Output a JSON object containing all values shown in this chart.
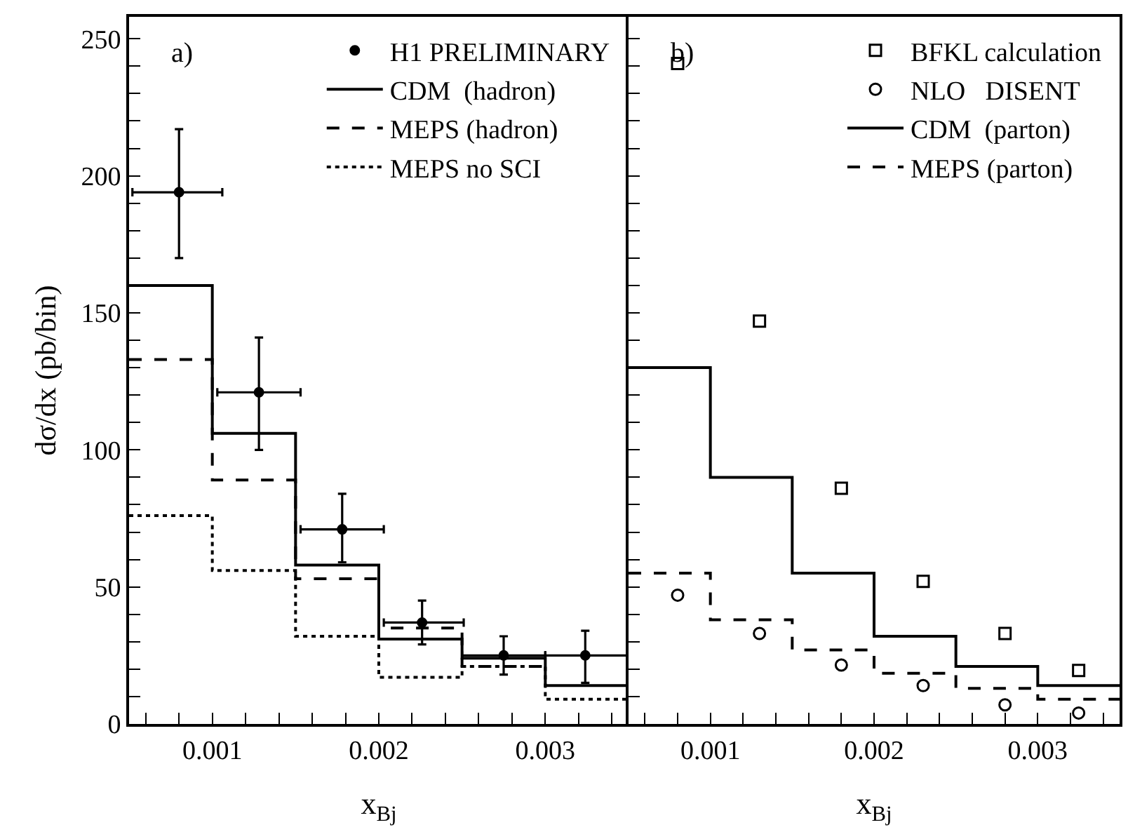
{
  "chart_data": [
    {
      "type": "step",
      "annotations": [
        "a)"
      ],
      "ylabel": "dσ/dx (pb/bin)",
      "xlabel": "x$_{Bj}$",
      "series": [
        {
          "name": "H1 PRELIMINARY",
          "type": "scatter",
          "marker": "circle",
          "color": "#000000",
          "x": [
            0.0008,
            0.00128,
            0.00178,
            0.00226,
            0.00275,
            0.00324
          ],
          "values": [
            194,
            121,
            71,
            37,
            25,
            25
          ],
          "errors": [
            [
              170,
              217
            ],
            [
              100,
              141
            ],
            [
              59,
              84
            ],
            [
              29,
              45
            ],
            [
              18,
              32
            ],
            [
              15,
              34
            ]
          ],
          "xerrors": [
            [
              0.00052,
              0.00106
            ],
            [
              0.00103,
              0.00153
            ],
            [
              0.00153,
              0.00203
            ],
            [
              0.00203,
              0.00251
            ],
            [
              0.0025,
              0.003
            ],
            [
              0.003,
              0.0035
            ]
          ]
        },
        {
          "name": "CDM  (hadron)",
          "line_style": "solid",
          "color": "#000000",
          "x": [
            0.0005,
            0.001,
            0.0015,
            0.002,
            0.0025,
            0.003,
            0.0035
          ],
          "values": [
            160,
            106,
            58,
            31,
            24,
            14,
            14
          ]
        },
        {
          "name": "MEPS (hadron)",
          "line_style": "dashed",
          "color": "#000000",
          "x": [
            0.0005,
            0.001,
            0.0015,
            0.002,
            0.0025,
            0.003
          ],
          "values": [
            133,
            89,
            53,
            35,
            21,
            21
          ]
        },
        {
          "name": "MEPS no SCI",
          "line_style": "dotted",
          "color": "#000000",
          "x": [
            0.0005,
            0.001,
            0.0015,
            0.002,
            0.0025,
            0.003,
            0.0035
          ],
          "values": [
            76,
            56,
            32,
            17,
            21,
            9,
            9
          ]
        }
      ],
      "xlim": [
        0.0005,
        0.0035
      ],
      "ylim": [
        0,
        258
      ],
      "xticks": [
        {
          "value": 0.0006,
          "label": null
        },
        {
          "value": 0.0008,
          "label": null
        },
        0.001,
        {
          "value": 0.0012,
          "label": null
        },
        {
          "value": 0.0014,
          "label": null
        },
        {
          "value": 0.0016,
          "label": null
        },
        {
          "value": 0.0018,
          "label": null
        },
        0.002,
        {
          "value": 0.0022,
          "label": null
        },
        {
          "value": 0.0024,
          "label": null
        },
        {
          "value": 0.0026,
          "label": null
        },
        {
          "value": 0.0028,
          "label": null
        },
        0.003,
        {
          "value": 0.0032,
          "label": null
        },
        {
          "value": 0.0034,
          "label": null
        }
      ],
      "yticks": [
        0,
        {
          "value": 10,
          "label": null
        },
        {
          "value": 20,
          "label": null
        },
        {
          "value": 30,
          "label": null
        },
        {
          "value": 40,
          "label": null
        },
        50,
        {
          "value": 60,
          "label": null
        },
        {
          "value": 70,
          "label": null
        },
        {
          "value": 80,
          "label": null
        },
        {
          "value": 90,
          "label": null
        },
        100,
        {
          "value": 110,
          "label": null
        },
        {
          "value": 120,
          "label": null
        },
        {
          "value": 130,
          "label": null
        },
        {
          "value": 140,
          "label": null
        },
        150,
        {
          "value": 160,
          "label": null
        },
        {
          "value": 170,
          "label": null
        },
        {
          "value": 180,
          "label": null
        },
        {
          "value": 190,
          "label": null
        },
        200,
        {
          "value": 210,
          "label": null
        },
        {
          "value": 220,
          "label": null
        },
        {
          "value": 230,
          "label": null
        },
        {
          "value": 240,
          "label": null
        },
        250
      ],
      "grid": false,
      "legend": "top right"
    },
    {
      "type": "step",
      "annotations": [
        "b)"
      ],
      "xlabel": "x$_{Bj}$",
      "series": [
        {
          "name": "BFKL calculation",
          "type": "scatter",
          "marker": "square",
          "color": "#000000",
          "x": [
            0.0008,
            0.0013,
            0.0018,
            0.0023,
            0.0028,
            0.00325
          ],
          "values": [
            241,
            147,
            86,
            52,
            33,
            19.5
          ]
        },
        {
          "name": "NLO   DISENT",
          "type": "scatter",
          "marker": "circle",
          "color": "#000000",
          "x": [
            0.0008,
            0.0013,
            0.0018,
            0.0023,
            0.0028,
            0.00325
          ],
          "values": [
            47,
            33,
            21.5,
            14,
            7,
            4
          ]
        },
        {
          "name": "CDM  (parton)",
          "line_style": "solid",
          "color": "#000000",
          "x": [
            0.0005,
            0.001,
            0.0015,
            0.002,
            0.0025,
            0.003,
            0.0035
          ],
          "values": [
            130,
            90,
            55,
            32,
            21,
            14,
            14
          ]
        },
        {
          "name": "MEPS (parton)",
          "line_style": "dashed",
          "color": "#000000",
          "x": [
            0.0005,
            0.001,
            0.0015,
            0.002,
            0.0025,
            0.003,
            0.0035
          ],
          "values": [
            55,
            38,
            27,
            18.5,
            13,
            9,
            9
          ]
        }
      ],
      "xlim": [
        0.0005,
        0.0035
      ],
      "ylim": [
        0,
        258
      ],
      "xticks": [
        {
          "value": 0.0006,
          "label": null
        },
        {
          "value": 0.0008,
          "label": null
        },
        0.001,
        {
          "value": 0.0012,
          "label": null
        },
        {
          "value": 0.0014,
          "label": null
        },
        {
          "value": 0.0016,
          "label": null
        },
        {
          "value": 0.0018,
          "label": null
        },
        0.002,
        {
          "value": 0.0022,
          "label": null
        },
        {
          "value": 0.0024,
          "label": null
        },
        {
          "value": 0.0026,
          "label": null
        },
        {
          "value": 0.0028,
          "label": null
        },
        0.003,
        {
          "value": 0.0032,
          "label": null
        },
        {
          "value": 0.0034,
          "label": null
        }
      ],
      "yticks": [
        0,
        {
          "value": 10,
          "label": null
        },
        {
          "value": 20,
          "label": null
        },
        {
          "value": 30,
          "label": null
        },
        {
          "value": 40,
          "label": null
        },
        50,
        {
          "value": 60,
          "label": null
        },
        {
          "value": 70,
          "label": null
        },
        {
          "value": 80,
          "label": null
        },
        {
          "value": 90,
          "label": null
        },
        100,
        {
          "value": 110,
          "label": null
        },
        {
          "value": 120,
          "label": null
        },
        {
          "value": 130,
          "label": null
        },
        {
          "value": 140,
          "label": null
        },
        150,
        {
          "value": 160,
          "label": null
        },
        {
          "value": 170,
          "label": null
        },
        {
          "value": 180,
          "label": null
        },
        {
          "value": 190,
          "label": null
        },
        200,
        {
          "value": 210,
          "label": null
        },
        {
          "value": 220,
          "label": null
        },
        {
          "value": 230,
          "label": null
        },
        {
          "value": 240,
          "label": null
        },
        250
      ],
      "tick_labels": "x",
      "grid": false,
      "legend": "top right"
    }
  ]
}
